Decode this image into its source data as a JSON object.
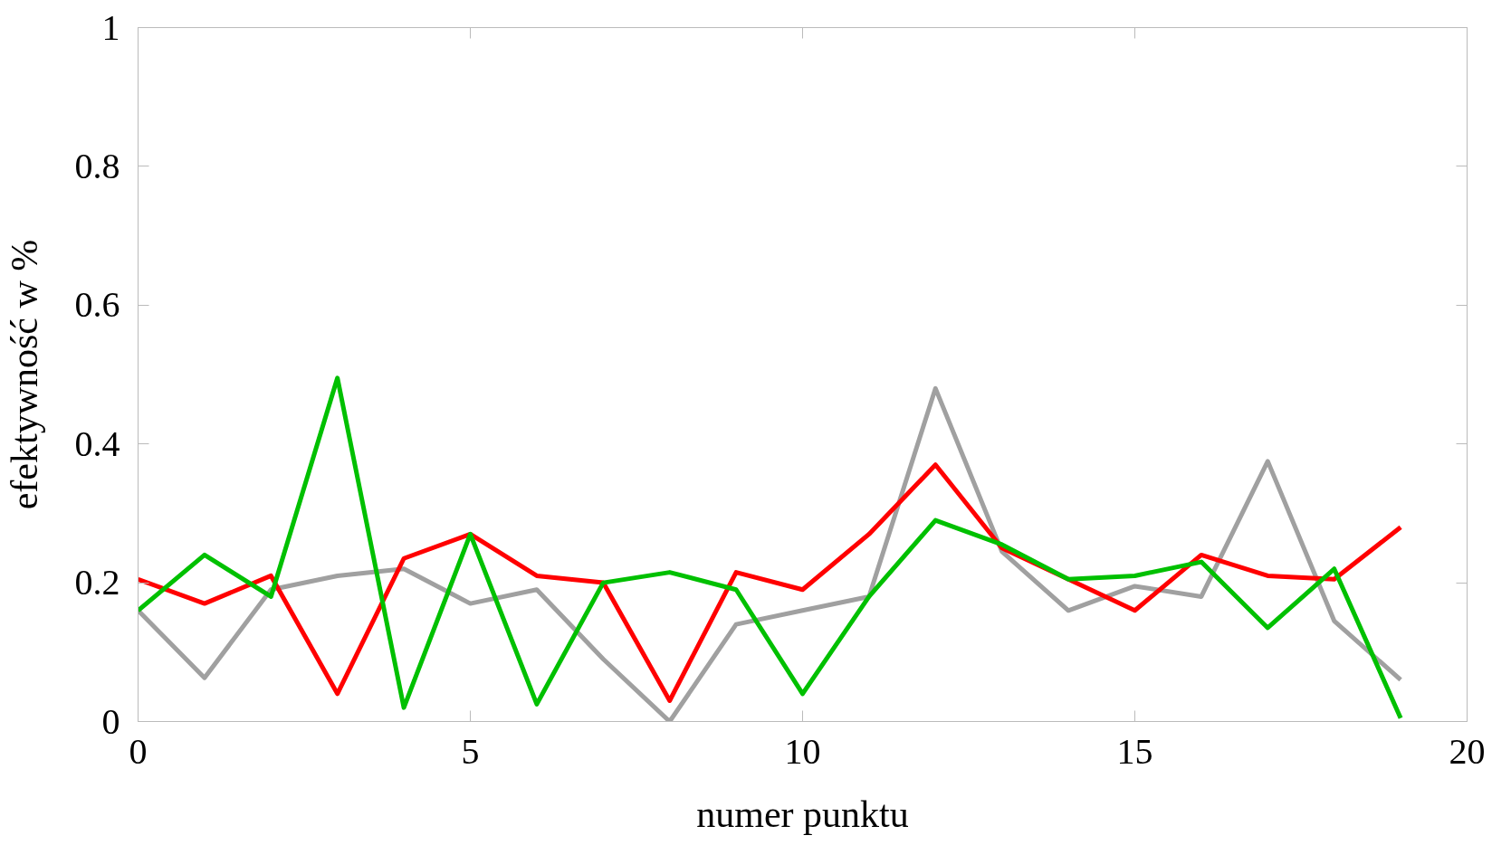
{
  "chart_data": {
    "type": "line",
    "xlabel": "numer punktu",
    "ylabel": "efektywność w %",
    "x": [
      0,
      1,
      2,
      3,
      4,
      5,
      6,
      7,
      8,
      9,
      10,
      11,
      12,
      13,
      14,
      15,
      16,
      17,
      18,
      19
    ],
    "series": [
      {
        "color": "#a0a0a0",
        "values": [
          0.16,
          0.063,
          0.19,
          0.21,
          0.22,
          0.17,
          0.19,
          0.09,
          0.0,
          0.14,
          0.16,
          0.18,
          0.48,
          0.245,
          0.16,
          0.195,
          0.18,
          0.375,
          0.145,
          0.06
        ]
      },
      {
        "color": "#ff0000",
        "values": [
          0.205,
          0.17,
          0.21,
          0.04,
          0.235,
          0.27,
          0.21,
          0.2,
          0.03,
          0.215,
          0.19,
          0.27,
          0.37,
          0.25,
          0.205,
          0.16,
          0.24,
          0.21,
          0.205,
          0.28
        ]
      },
      {
        "color": "#00c000",
        "values": [
          0.16,
          0.24,
          0.18,
          0.495,
          0.02,
          0.27,
          0.025,
          0.2,
          0.215,
          0.19,
          0.04,
          0.18,
          0.29,
          0.255,
          0.205,
          0.21,
          0.23,
          0.135,
          0.22,
          0.005
        ]
      }
    ],
    "xlim": [
      0,
      20
    ],
    "xticks": [
      0,
      5,
      10,
      15,
      20
    ],
    "ylim": [
      0,
      1
    ],
    "yticks": [
      0,
      0.2,
      0.4,
      0.6,
      0.8,
      1
    ],
    "grid": false,
    "marker": "none",
    "line_style": "solid"
  }
}
